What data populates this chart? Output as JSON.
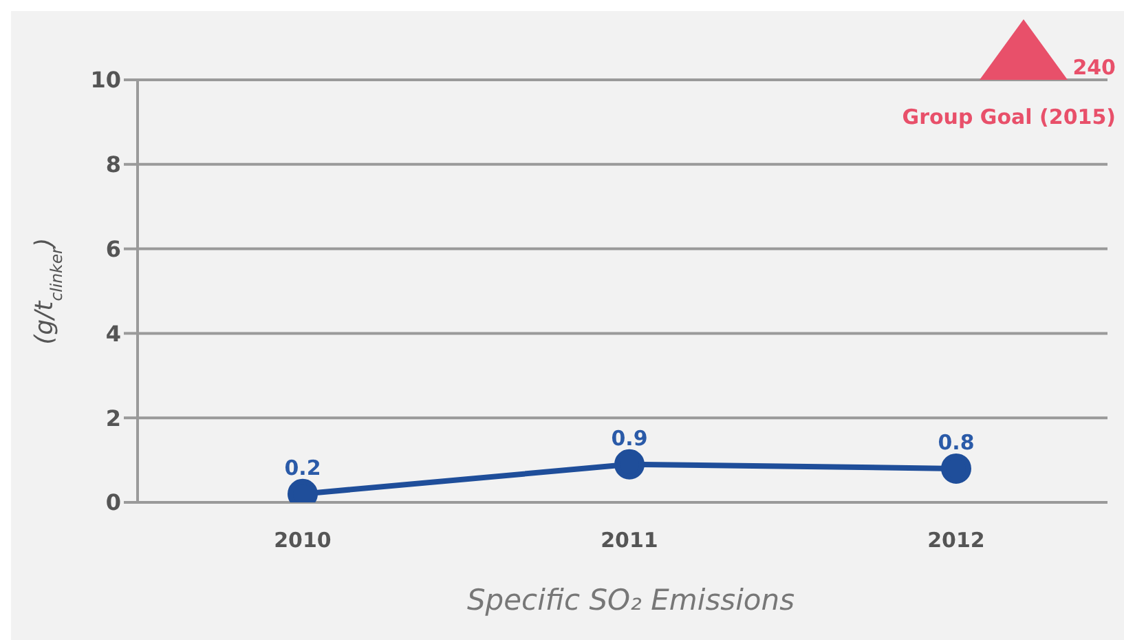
{
  "chart_data": {
    "type": "line",
    "title": "Specific SO₂ Emissions",
    "ylabel": "(g/t$_{clinker}$)",
    "categories": [
      "2010",
      "2011",
      "2012"
    ],
    "series": [
      {
        "color": "#1f4e9a",
        "values": [
          0.2,
          0.9,
          0.8
        ]
      }
    ],
    "ylim": [
      0,
      10
    ],
    "yticks": [
      0,
      2,
      4,
      6,
      8,
      10
    ],
    "grid": "y",
    "data_labels": true,
    "marker": "circle",
    "line_style": "solid",
    "annotations": [
      "240",
      "Group Goal (2015)"
    ]
  }
}
